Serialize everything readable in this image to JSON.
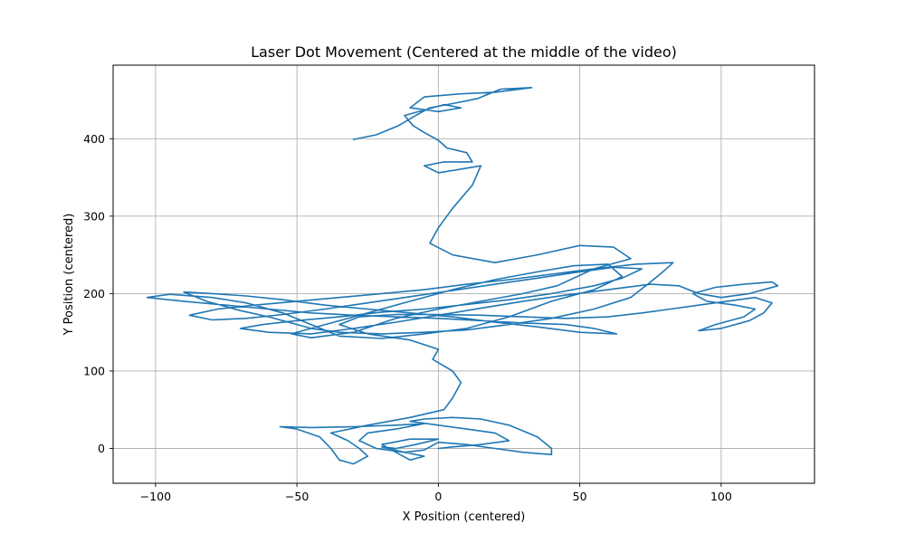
{
  "chart_data": {
    "type": "line",
    "title": "Laser Dot Movement (Centered at the middle of the video)",
    "xlabel": "X Position (centered)",
    "ylabel": "Y Position (centered)",
    "xlim": [
      -115,
      133
    ],
    "ylim": [
      -45,
      495
    ],
    "xticks": [
      -100,
      -50,
      0,
      50,
      100
    ],
    "yticks": [
      0,
      100,
      200,
      300,
      400
    ],
    "xtick_labels": [
      "−100",
      "−50",
      "0",
      "50",
      "100"
    ],
    "ytick_labels": [
      "0",
      "100",
      "200",
      "300",
      "400"
    ],
    "grid": true,
    "series": [
      {
        "color": "#1f77b4",
        "points": [
          [
            -30,
            399
          ],
          [
            -22,
            405
          ],
          [
            -14,
            417
          ],
          [
            -8,
            430
          ],
          [
            -3,
            440
          ],
          [
            6,
            446
          ],
          [
            14,
            452
          ],
          [
            22,
            464
          ],
          [
            33,
            466
          ],
          [
            20,
            460
          ],
          [
            8,
            458
          ],
          [
            -5,
            454
          ],
          [
            -10,
            440
          ],
          [
            0,
            435
          ],
          [
            8,
            440
          ],
          [
            2,
            444
          ],
          [
            -12,
            430
          ],
          [
            -9,
            417
          ],
          [
            -5,
            408
          ],
          [
            0,
            398
          ],
          [
            3,
            388
          ],
          [
            10,
            382
          ],
          [
            12,
            370
          ],
          [
            2,
            370
          ],
          [
            -5,
            365
          ],
          [
            0,
            356
          ],
          [
            10,
            362
          ],
          [
            15,
            365
          ],
          [
            12,
            340
          ],
          [
            5,
            310
          ],
          [
            0,
            285
          ],
          [
            -3,
            265
          ],
          [
            5,
            250
          ],
          [
            20,
            240
          ],
          [
            35,
            250
          ],
          [
            50,
            262
          ],
          [
            62,
            260
          ],
          [
            68,
            245
          ],
          [
            55,
            232
          ],
          [
            42,
            210
          ],
          [
            30,
            200
          ],
          [
            15,
            190
          ],
          [
            0,
            180
          ],
          [
            -15,
            168
          ],
          [
            -30,
            150
          ],
          [
            -45,
            143
          ],
          [
            -52,
            148
          ],
          [
            -40,
            160
          ],
          [
            -25,
            175
          ],
          [
            -10,
            190
          ],
          [
            5,
            205
          ],
          [
            20,
            218
          ],
          [
            35,
            228
          ],
          [
            48,
            236
          ],
          [
            60,
            238
          ],
          [
            65,
            222
          ],
          [
            55,
            205
          ],
          [
            40,
            190
          ],
          [
            25,
            170
          ],
          [
            10,
            155
          ],
          [
            -5,
            148
          ],
          [
            -20,
            142
          ],
          [
            -35,
            145
          ],
          [
            -45,
            160
          ],
          [
            -55,
            175
          ],
          [
            -68,
            188
          ],
          [
            -80,
            195
          ],
          [
            -95,
            199
          ],
          [
            -103,
            195
          ],
          [
            -90,
            190
          ],
          [
            -75,
            185
          ],
          [
            -60,
            180
          ],
          [
            -45,
            175
          ],
          [
            -30,
            172
          ],
          [
            -15,
            170
          ],
          [
            0,
            168
          ],
          [
            15,
            165
          ],
          [
            30,
            162
          ],
          [
            45,
            160
          ],
          [
            55,
            155
          ],
          [
            63,
            148
          ],
          [
            50,
            150
          ],
          [
            35,
            157
          ],
          [
            20,
            163
          ],
          [
            5,
            170
          ],
          [
            -10,
            175
          ],
          [
            -25,
            180
          ],
          [
            -40,
            185
          ],
          [
            -55,
            192
          ],
          [
            -68,
            197
          ],
          [
            -80,
            200
          ],
          [
            -90,
            202
          ],
          [
            -82,
            190
          ],
          [
            -70,
            178
          ],
          [
            -60,
            170
          ],
          [
            -52,
            162
          ],
          [
            -45,
            155
          ],
          [
            -35,
            150
          ],
          [
            -20,
            148
          ],
          [
            -5,
            150
          ],
          [
            10,
            153
          ],
          [
            25,
            160
          ],
          [
            40,
            168
          ],
          [
            55,
            180
          ],
          [
            68,
            195
          ],
          [
            75,
            215
          ],
          [
            80,
            230
          ],
          [
            83,
            240
          ],
          [
            70,
            238
          ],
          [
            55,
            232
          ],
          [
            40,
            225
          ],
          [
            25,
            218
          ],
          [
            10,
            212
          ],
          [
            -5,
            205
          ],
          [
            -20,
            200
          ],
          [
            -35,
            195
          ],
          [
            -50,
            190
          ],
          [
            -65,
            185
          ],
          [
            -78,
            180
          ],
          [
            -88,
            172
          ],
          [
            -80,
            166
          ],
          [
            -68,
            168
          ],
          [
            -55,
            173
          ],
          [
            -40,
            180
          ],
          [
            -25,
            188
          ],
          [
            -10,
            196
          ],
          [
            5,
            204
          ],
          [
            20,
            212
          ],
          [
            35,
            220
          ],
          [
            50,
            228
          ],
          [
            62,
            234
          ],
          [
            72,
            232
          ],
          [
            65,
            220
          ],
          [
            55,
            210
          ],
          [
            40,
            200
          ],
          [
            25,
            192
          ],
          [
            10,
            186
          ],
          [
            -5,
            180
          ],
          [
            -20,
            176
          ],
          [
            -35,
            170
          ],
          [
            -50,
            165
          ],
          [
            -62,
            160
          ],
          [
            -70,
            155
          ],
          [
            -60,
            150
          ],
          [
            -45,
            148
          ],
          [
            -30,
            155
          ],
          [
            -15,
            163
          ],
          [
            0,
            172
          ],
          [
            15,
            181
          ],
          [
            30,
            190
          ],
          [
            45,
            198
          ],
          [
            60,
            205
          ],
          [
            75,
            212
          ],
          [
            85,
            210
          ],
          [
            92,
            200
          ],
          [
            100,
            195
          ],
          [
            110,
            200
          ],
          [
            120,
            210
          ],
          [
            118,
            215
          ],
          [
            108,
            212
          ],
          [
            98,
            208
          ],
          [
            90,
            200
          ],
          [
            95,
            190
          ],
          [
            105,
            185
          ],
          [
            112,
            180
          ],
          [
            108,
            170
          ],
          [
            98,
            160
          ],
          [
            92,
            152
          ],
          [
            100,
            155
          ],
          [
            110,
            165
          ],
          [
            115,
            175
          ],
          [
            118,
            188
          ],
          [
            112,
            195
          ],
          [
            102,
            190
          ],
          [
            92,
            185
          ],
          [
            82,
            180
          ],
          [
            72,
            175
          ],
          [
            60,
            170
          ],
          [
            45,
            168
          ],
          [
            30,
            170
          ],
          [
            15,
            172
          ],
          [
            0,
            173
          ],
          [
            -15,
            173
          ],
          [
            -28,
            170
          ],
          [
            -35,
            160
          ],
          [
            -25,
            148
          ],
          [
            -10,
            140
          ],
          [
            0,
            128
          ],
          [
            -2,
            115
          ],
          [
            5,
            100
          ],
          [
            8,
            85
          ],
          [
            5,
            65
          ],
          [
            2,
            50
          ],
          [
            -10,
            40
          ],
          [
            -25,
            30
          ],
          [
            -38,
            20
          ],
          [
            -32,
            10
          ],
          [
            -28,
            0
          ],
          [
            -25,
            -10
          ],
          [
            -30,
            -20
          ],
          [
            -35,
            -15
          ],
          [
            -38,
            0
          ],
          [
            -42,
            15
          ],
          [
            -50,
            25
          ],
          [
            -56,
            28
          ],
          [
            -45,
            27
          ],
          [
            -30,
            28
          ],
          [
            -15,
            30
          ],
          [
            -5,
            32
          ],
          [
            -15,
            25
          ],
          [
            -25,
            20
          ],
          [
            -28,
            10
          ],
          [
            -22,
            0
          ],
          [
            -12,
            -5
          ],
          [
            -5,
            -10
          ],
          [
            -10,
            -15
          ],
          [
            -15,
            -5
          ],
          [
            -20,
            5
          ],
          [
            -10,
            12
          ],
          [
            0,
            12
          ],
          [
            -8,
            5
          ],
          [
            -15,
            0
          ],
          [
            -20,
            2
          ],
          [
            -12,
            -5
          ],
          [
            -5,
            -2
          ],
          [
            0,
            8
          ],
          [
            10,
            5
          ],
          [
            20,
            0
          ],
          [
            30,
            -5
          ],
          [
            40,
            -8
          ],
          [
            40,
            0
          ],
          [
            35,
            15
          ],
          [
            25,
            30
          ],
          [
            15,
            38
          ],
          [
            5,
            40
          ],
          [
            -5,
            38
          ],
          [
            -10,
            35
          ],
          [
            0,
            30
          ],
          [
            10,
            25
          ],
          [
            20,
            20
          ],
          [
            25,
            10
          ],
          [
            15,
            5
          ],
          [
            5,
            2
          ],
          [
            0,
            0
          ]
        ]
      }
    ]
  }
}
